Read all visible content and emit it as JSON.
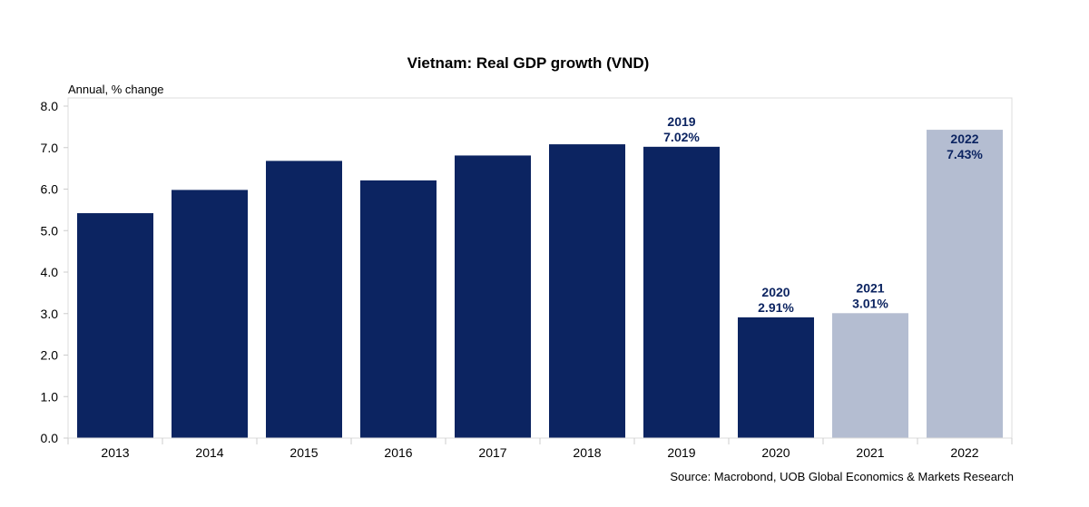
{
  "chart_data": {
    "type": "bar",
    "title": "Vietnam: Real GDP growth (VND)",
    "ylabel": "Annual, % change",
    "xlabel": "",
    "source": "Source: Macrobond, UOB Global Economics & Markets Research",
    "ylim": [
      0,
      8
    ],
    "yticks": [
      "0.0",
      "1.0",
      "2.0",
      "3.0",
      "4.0",
      "5.0",
      "6.0",
      "7.0",
      "8.0"
    ],
    "grid": false,
    "categories": [
      "2013",
      "2014",
      "2015",
      "2016",
      "2017",
      "2018",
      "2019",
      "2020",
      "2021",
      "2022"
    ],
    "values": [
      5.42,
      5.98,
      6.68,
      6.21,
      6.81,
      7.08,
      7.02,
      2.91,
      3.01,
      7.43
    ],
    "bar_colors": [
      "#0c2461",
      "#0c2461",
      "#0c2461",
      "#0c2461",
      "#0c2461",
      "#0c2461",
      "#0c2461",
      "#0c2461",
      "#b4bdd1",
      "#b4bdd1"
    ],
    "data_labels": [
      {
        "category": "2019",
        "year": "2019",
        "value": "7.02%",
        "position": "above"
      },
      {
        "category": "2020",
        "year": "2020",
        "value": "2.91%",
        "position": "above"
      },
      {
        "category": "2021",
        "year": "2021",
        "value": "3.01%",
        "position": "above"
      },
      {
        "category": "2022",
        "year": "2022",
        "value": "7.43%",
        "position": "inside"
      }
    ],
    "label_color": "#0c2461"
  }
}
